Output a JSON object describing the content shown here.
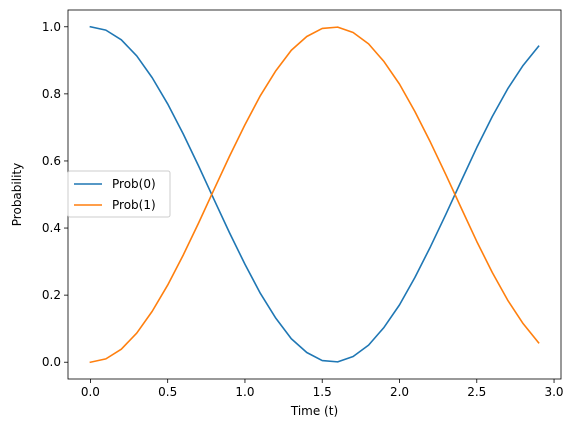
{
  "chart_data": {
    "type": "line",
    "title": "",
    "xlabel": "Time (t)",
    "ylabel": "Probability",
    "xlim": [
      -0.145,
      3.045
    ],
    "ylim": [
      -0.05,
      1.05
    ],
    "xticks": [
      0.0,
      0.5,
      1.0,
      1.5,
      2.0,
      2.5,
      3.0
    ],
    "xtick_labels": [
      "0.0",
      "0.5",
      "1.0",
      "1.5",
      "2.0",
      "2.5",
      "3.0"
    ],
    "yticks": [
      0.0,
      0.2,
      0.4,
      0.6,
      0.8,
      1.0
    ],
    "ytick_labels": [
      "0.0",
      "0.2",
      "0.4",
      "0.6",
      "0.8",
      "1.0"
    ],
    "grid": false,
    "legend_position": "center-left",
    "x": [
      0.0,
      0.1,
      0.2,
      0.3,
      0.4,
      0.5,
      0.6,
      0.7,
      0.8,
      0.9,
      1.0,
      1.1,
      1.2,
      1.3,
      1.4,
      1.5,
      1.6,
      1.7,
      1.8,
      1.9,
      2.0,
      2.1,
      2.2,
      2.3,
      2.4,
      2.5,
      2.6,
      2.7,
      2.8,
      2.9
    ],
    "series": [
      {
        "name": "Prob(0)",
        "color": "#1f77b4",
        "values": [
          1.0,
          0.99,
          0.961,
          0.913,
          0.848,
          0.77,
          0.681,
          0.585,
          0.485,
          0.386,
          0.292,
          0.205,
          0.131,
          0.07,
          0.029,
          0.005,
          0.001,
          0.017,
          0.051,
          0.104,
          0.171,
          0.253,
          0.344,
          0.441,
          0.541,
          0.64,
          0.732,
          0.815,
          0.885,
          0.942
        ]
      },
      {
        "name": "Prob(1)",
        "color": "#ff7f0e",
        "values": [
          0.0,
          0.01,
          0.039,
          0.087,
          0.152,
          0.23,
          0.319,
          0.415,
          0.515,
          0.614,
          0.708,
          0.795,
          0.869,
          0.93,
          0.971,
          0.995,
          0.999,
          0.983,
          0.949,
          0.896,
          0.829,
          0.747,
          0.656,
          0.559,
          0.459,
          0.36,
          0.268,
          0.185,
          0.115,
          0.058
        ]
      }
    ]
  }
}
